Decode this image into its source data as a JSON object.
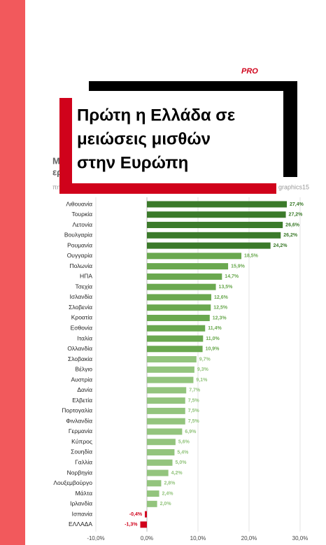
{
  "badge": "PRO",
  "headline": [
    "Πρώτη η Ελλάδα σε",
    "μειώσεις μισθών",
    "στην Ευρώπη"
  ],
  "background_text": [
    "M",
    "ερ",
    "πη",
    "graphics15"
  ],
  "chart_data": {
    "type": "hbar",
    "categories": [
      "Λιθουανία",
      "Τουρκία",
      "Λετονία",
      "Βουλγαρία",
      "Ρουμανία",
      "Ουγγαρία",
      "Πολωνία",
      "ΗΠΑ",
      "Τσεχία",
      "Ισλανδία",
      "Σλοβενία",
      "Κροατία",
      "Εσθονία",
      "Ιταλία",
      "Ολλανδία",
      "Σλοβακία",
      "Βέλγιο",
      "Αυστρία",
      "Δανία",
      "Ελβετία",
      "Πορτογαλία",
      "Φινλανδία",
      "Γερμανία",
      "Κύπρος",
      "Σουηδία",
      "Γαλλία",
      "Νορβηγία",
      "Λουξεμβούργο",
      "Μάλτα",
      "Ιρλανδία",
      "Ισπανία",
      "ΕΛΛΑΔΑ"
    ],
    "values": [
      27.4,
      27.2,
      26.6,
      26.2,
      24.2,
      18.5,
      15.9,
      14.7,
      13.5,
      12.6,
      12.5,
      12.3,
      11.4,
      11.0,
      10.9,
      9.7,
      9.3,
      9.1,
      7.7,
      7.5,
      7.5,
      7.5,
      6.9,
      5.6,
      5.4,
      5.0,
      4.2,
      2.8,
      2.4,
      2.0,
      -0.4,
      -1.3
    ],
    "value_labels": [
      "27,4%",
      "27,2%",
      "26,6%",
      "26,2%",
      "24,2%",
      "18,5%",
      "15,9%",
      "14,7%",
      "13,5%",
      "12,6%",
      "12,5%",
      "12,3%",
      "11,4%",
      "11,0%",
      "10,9%",
      "9,7%",
      "9,3%",
      "9,1%",
      "7,7%",
      "7,5%",
      "7,5%",
      "7,5%",
      "6,9%",
      "5,6%",
      "5,4%",
      "5,0%",
      "4,2%",
      "2,8%",
      "2,4%",
      "2,0%",
      "-0,4%",
      "-1,3%"
    ],
    "colors": [
      "#3b7a2a",
      "#3b7a2a",
      "#3b7a2a",
      "#3b7a2a",
      "#3b7a2a",
      "#6aa84f",
      "#6aa84f",
      "#6aa84f",
      "#6aa84f",
      "#6aa84f",
      "#6aa84f",
      "#6aa84f",
      "#6aa84f",
      "#6aa84f",
      "#6aa84f",
      "#93c47d",
      "#93c47d",
      "#93c47d",
      "#93c47d",
      "#93c47d",
      "#93c47d",
      "#93c47d",
      "#93c47d",
      "#93c47d",
      "#93c47d",
      "#93c47d",
      "#93c47d",
      "#93c47d",
      "#93c47d",
      "#93c47d",
      "#d0021b",
      "#d0021b"
    ],
    "xlim": [
      -10,
      30
    ],
    "xticks": [
      {
        "value": -10,
        "label": "-10,0%"
      },
      {
        "value": 0,
        "label": "0,0%"
      },
      {
        "value": 10,
        "label": "10,0%"
      },
      {
        "value": 20,
        "label": "20,0%"
      },
      {
        "value": 30,
        "label": "30,0%"
      }
    ],
    "grid": true
  }
}
